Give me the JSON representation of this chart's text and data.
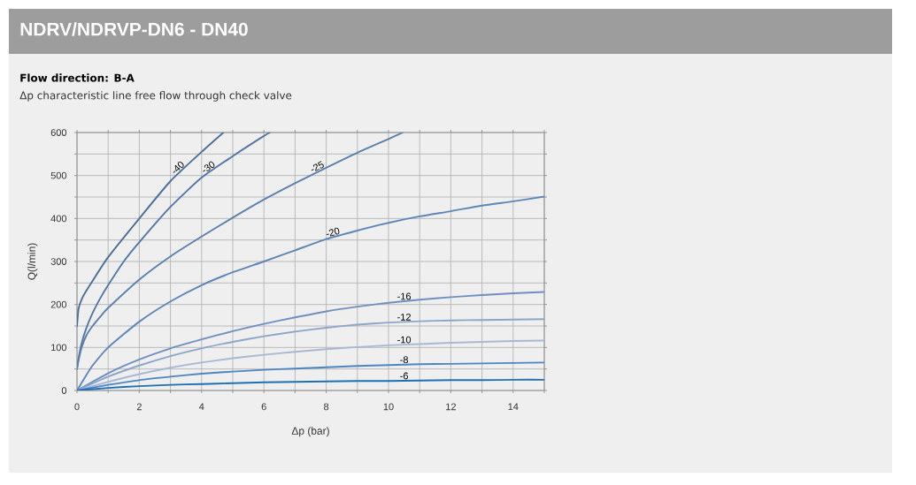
{
  "chart_data": {
    "type": "line",
    "title": "NDRV/NDRVP-DN6 - DN40",
    "subtitle": "Flow direction: B-A",
    "annotations": [
      "Δp characteristic line free flow through check valve"
    ],
    "xlabel": "Δp (bar)",
    "ylabel": "Q(l/min)",
    "xlim": [
      0,
      15
    ],
    "ylim": [
      0,
      600
    ],
    "xticks": [
      0,
      {
        "value": 1,
        "label": null
      },
      2,
      {
        "value": 3,
        "label": null
      },
      4,
      {
        "value": 5,
        "label": null
      },
      6,
      {
        "value": 7,
        "label": null
      },
      8,
      {
        "value": 9,
        "label": null
      },
      10,
      {
        "value": 11,
        "label": null
      },
      12,
      {
        "value": 13,
        "label": null
      },
      14,
      {
        "value": 15,
        "label": null
      }
    ],
    "yticks": [
      0,
      {
        "value": 50,
        "label": null
      },
      100,
      {
        "value": 150,
        "label": null
      },
      200,
      {
        "value": 250,
        "label": null
      },
      300,
      {
        "value": 350,
        "label": null
      },
      400,
      {
        "value": 450,
        "label": null
      },
      500,
      {
        "value": 550,
        "label": null
      },
      600
    ],
    "grid": true,
    "series": [
      {
        "name": "-40",
        "color": "#4b6e99",
        "x": [
          0,
          0.05,
          0.15,
          0.3,
          0.5,
          1,
          2,
          3,
          4,
          4.7
        ],
        "values": [
          150,
          190,
          212,
          232,
          255,
          310,
          400,
          487,
          555,
          600
        ]
      },
      {
        "name": "-30",
        "color": "#5277a6",
        "x": [
          0,
          0.05,
          0.15,
          0.3,
          0.5,
          0.75,
          1,
          1.5,
          2,
          3,
          4,
          5,
          6,
          6.2
        ],
        "values": [
          50,
          75,
          110,
          145,
          180,
          215,
          245,
          300,
          345,
          427,
          495,
          545,
          592,
          600
        ]
      },
      {
        "name": "-25",
        "color": "#5b80ae",
        "x": [
          0,
          0.05,
          0.15,
          0.3,
          0.5,
          0.75,
          1,
          2,
          3,
          4,
          5,
          6,
          7,
          8,
          9,
          10,
          10.46
        ],
        "values": [
          50,
          70,
          100,
          128,
          150,
          172,
          192,
          258,
          312,
          358,
          402,
          444,
          482,
          518,
          553,
          585,
          600
        ]
      },
      {
        "name": "-20",
        "color": "#5d86b8",
        "x": [
          0,
          0.25,
          0.5,
          1,
          2,
          3,
          4,
          5,
          6,
          7,
          8,
          9,
          10,
          11,
          12,
          13,
          14,
          15
        ],
        "values": [
          0,
          30,
          58,
          100,
          160,
          207,
          245,
          275,
          300,
          326,
          352,
          372,
          390,
          405,
          417,
          430,
          440,
          451
        ]
      },
      {
        "name": "-16",
        "color": "#6f8fc0",
        "x": [
          0,
          1,
          2,
          3,
          4,
          5,
          6,
          7,
          8,
          9,
          10,
          11,
          12,
          13,
          14,
          15
        ],
        "values": [
          0,
          40,
          72,
          98,
          119,
          138,
          155,
          170,
          184,
          195,
          204,
          211,
          217,
          222,
          226,
          229
        ]
      },
      {
        "name": "-12",
        "color": "#8da5c9",
        "x": [
          0,
          1,
          2,
          3,
          4,
          5,
          6,
          7,
          8,
          9,
          10,
          11,
          12,
          13,
          14,
          15
        ],
        "values": [
          0,
          32,
          58,
          80,
          98,
          113,
          126,
          137,
          146,
          153,
          158,
          161,
          163,
          164,
          165,
          166
        ]
      },
      {
        "name": "-10",
        "color": "#a8b8d4",
        "x": [
          0,
          1,
          2,
          3,
          4,
          5,
          6,
          7,
          8,
          9,
          10,
          11,
          12,
          13,
          14,
          15
        ],
        "values": [
          0,
          20,
          38,
          53,
          65,
          75,
          83,
          90,
          96,
          101,
          105,
          108,
          111,
          113,
          115,
          116
        ]
      },
      {
        "name": "-8",
        "color": "#4d85c2",
        "x": [
          0,
          1,
          2,
          3,
          4,
          5,
          6,
          7,
          8,
          9,
          10,
          11,
          12,
          13,
          14,
          15
        ],
        "values": [
          0,
          13,
          24,
          32,
          39,
          44,
          48,
          51,
          54,
          57,
          59,
          61,
          62,
          63,
          64,
          65
        ]
      },
      {
        "name": "-6",
        "color": "#1d70b3",
        "x": [
          0,
          1,
          2,
          3,
          4,
          5,
          6,
          7,
          8,
          9,
          10,
          11,
          12,
          13,
          14,
          15
        ],
        "values": [
          0,
          6,
          10,
          13,
          15,
          17,
          19,
          20,
          21,
          22,
          22,
          23,
          24,
          24,
          25,
          25
        ]
      }
    ]
  }
}
